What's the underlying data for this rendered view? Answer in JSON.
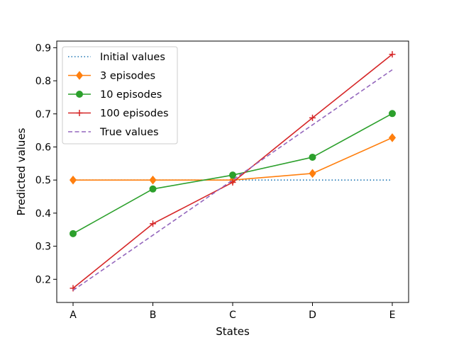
{
  "chart_data": {
    "type": "line",
    "title": "",
    "xlabel": "States",
    "ylabel": "Predicted values",
    "categories": [
      "A",
      "B",
      "C",
      "D",
      "E"
    ],
    "ylim": [
      0.13,
      0.92
    ],
    "yticks": [
      0.2,
      0.3,
      0.4,
      0.5,
      0.6,
      0.7,
      0.8,
      0.9
    ],
    "yticks_text": [
      "0.2",
      "0.3",
      "0.4",
      "0.5",
      "0.6",
      "0.7",
      "0.8",
      "0.9"
    ],
    "grid": false,
    "legend_position": "upper-left",
    "series": [
      {
        "name": "Initial values",
        "color": "#1f77b4",
        "line_style": "dotted",
        "marker": "none",
        "values": [
          0.5,
          0.5,
          0.5,
          0.5,
          0.5
        ]
      },
      {
        "name": "3 episodes",
        "color": "#ff7f0e",
        "line_style": "solid",
        "marker": "diamond",
        "values": [
          0.5,
          0.5,
          0.5,
          0.52,
          0.628
        ]
      },
      {
        "name": "10 episodes",
        "color": "#2ca02c",
        "line_style": "solid",
        "marker": "circle",
        "values": [
          0.338,
          0.473,
          0.515,
          0.569,
          0.701
        ]
      },
      {
        "name": "100 episodes",
        "color": "#d62728",
        "line_style": "solid",
        "marker": "plus",
        "values": [
          0.173,
          0.368,
          0.493,
          0.688,
          0.88
        ]
      },
      {
        "name": "True values",
        "color": "#9467bd",
        "line_style": "dashed",
        "marker": "none",
        "values": [
          0.1667,
          0.3333,
          0.5,
          0.6667,
          0.8333
        ]
      }
    ]
  }
}
